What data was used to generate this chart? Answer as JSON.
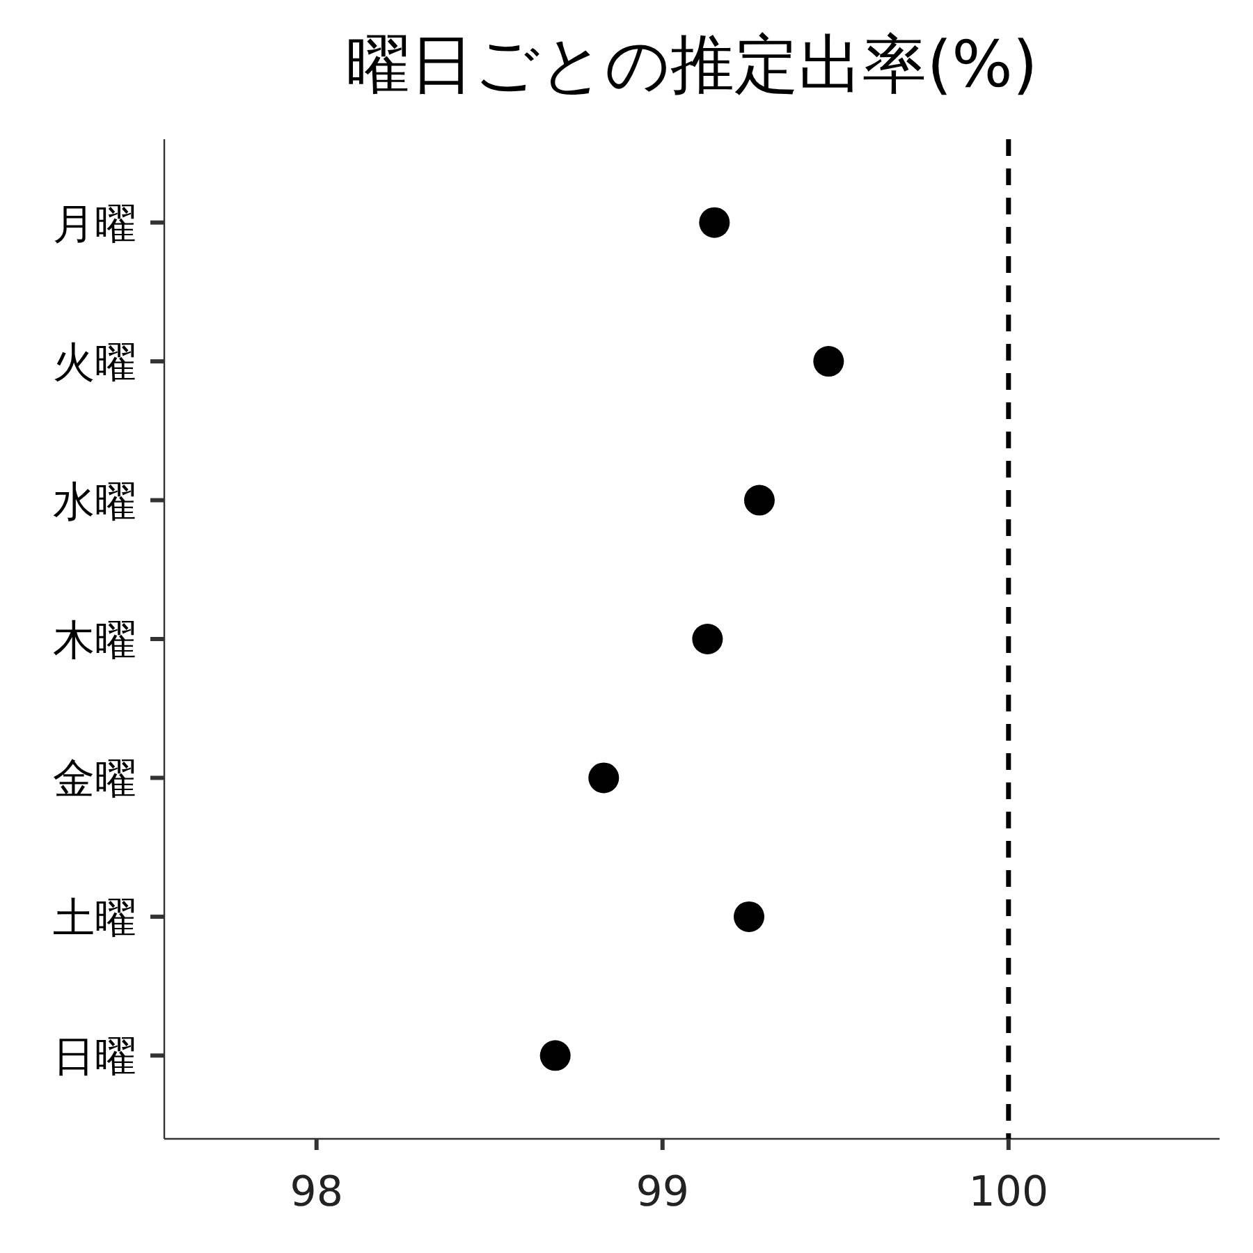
{
  "chart_data": {
    "type": "scatter",
    "orientation": "horizontal",
    "title": "曜日ごとの推定出率(%)",
    "categories": [
      "月曜",
      "火曜",
      "水曜",
      "木曜",
      "金曜",
      "土曜",
      "日曜"
    ],
    "values": [
      99.15,
      99.48,
      99.28,
      99.13,
      98.83,
      99.25,
      98.69
    ],
    "color": "#000000",
    "marker": "circle",
    "xlim": [
      97.56,
      100.61
    ],
    "xticks": [
      98,
      99,
      100
    ],
    "ref_lines": [
      {
        "axis": "x",
        "value": 100,
        "color": "#000000",
        "line_style": "dashed"
      }
    ],
    "grid": false
  }
}
